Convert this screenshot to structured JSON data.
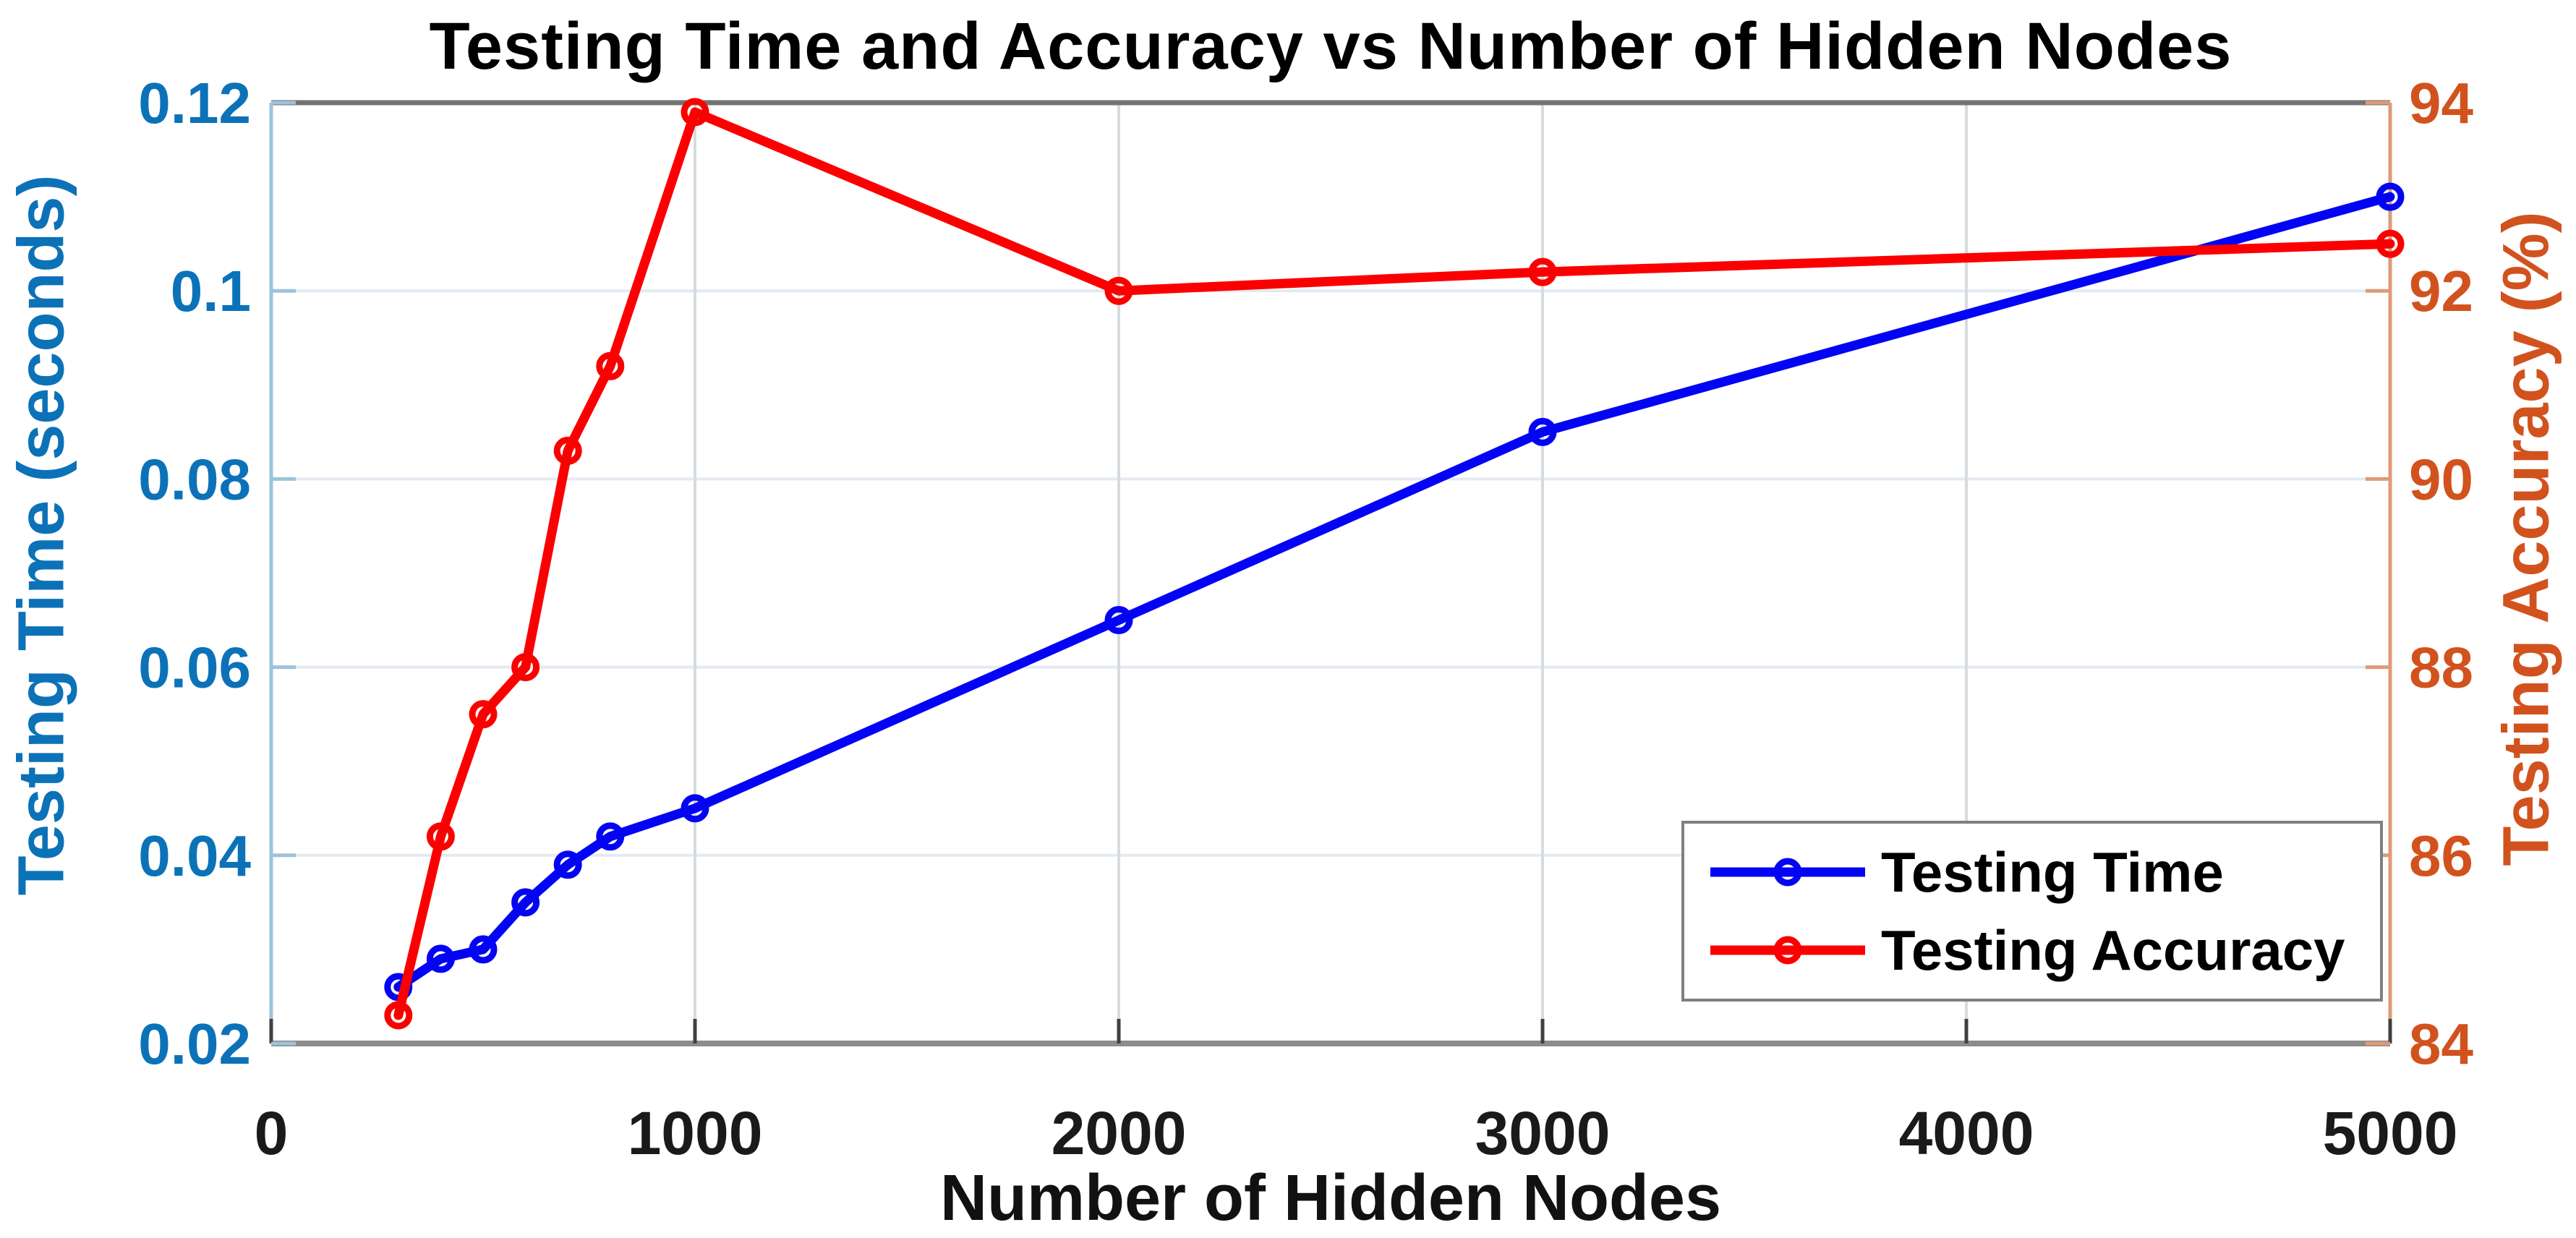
{
  "chart_data": {
    "type": "line",
    "title": "Testing Time and Accuracy vs Number of Hidden Nodes",
    "xlabel": "Number of Hidden Nodes",
    "ylabel_left": "Testing Time (seconds)",
    "ylabel_right": "Testing Accuracy (%)",
    "x_range": [
      0,
      5000
    ],
    "left_range": [
      0.02,
      0.12
    ],
    "right_range": [
      84,
      94
    ],
    "grid": true,
    "legend_position": "lower right",
    "x_tick_values": [
      0,
      1000,
      2000,
      3000,
      4000,
      5000
    ],
    "x_tick_labels": [
      "0",
      "1000",
      "2000",
      "3000",
      "4000",
      "5000"
    ],
    "left_tick_values": [
      0.02,
      0.04,
      0.06,
      0.08,
      0.1,
      0.12
    ],
    "left_tick_labels": [
      "0.02",
      "0.04",
      "0.06",
      "0.08",
      "0.1",
      "0.12"
    ],
    "right_tick_values": [
      84,
      86,
      88,
      90,
      92,
      94
    ],
    "right_tick_labels": [
      "84",
      "86",
      "88",
      "90",
      "92",
      "94"
    ],
    "x": [
      300,
      400,
      500,
      600,
      700,
      800,
      1000,
      2000,
      3000,
      5000
    ],
    "series": [
      {
        "name": "Testing Time",
        "axis": "left",
        "color": "#0404f4",
        "values": [
          0.026,
          0.029,
          0.03,
          0.035,
          0.039,
          0.042,
          0.045,
          0.065,
          0.085,
          0.11
        ]
      },
      {
        "name": "Testing Accuracy",
        "axis": "right",
        "color": "#fb0000",
        "values": [
          84.3,
          86.2,
          87.5,
          88,
          90.3,
          91.2,
          93.9,
          92,
          92.2,
          92.5
        ]
      }
    ],
    "colors": {
      "title_text": "#000000",
      "x_axis_text": "#1a1a1a",
      "left_axis_text": "#0c72b8",
      "right_axis_text": "#d2521e",
      "grid_horizontal": "#e3eaf1",
      "grid_vertical": "#d6dbdf",
      "spine_top": "#737373",
      "spine_bottom": "#8c8c8c",
      "spine_left": "#9ec2dc",
      "spine_right": "#dd9b77",
      "tick_bottom": "#404040",
      "legend_border": "#7f7f7f",
      "legend_bg": "#ffffff"
    }
  }
}
